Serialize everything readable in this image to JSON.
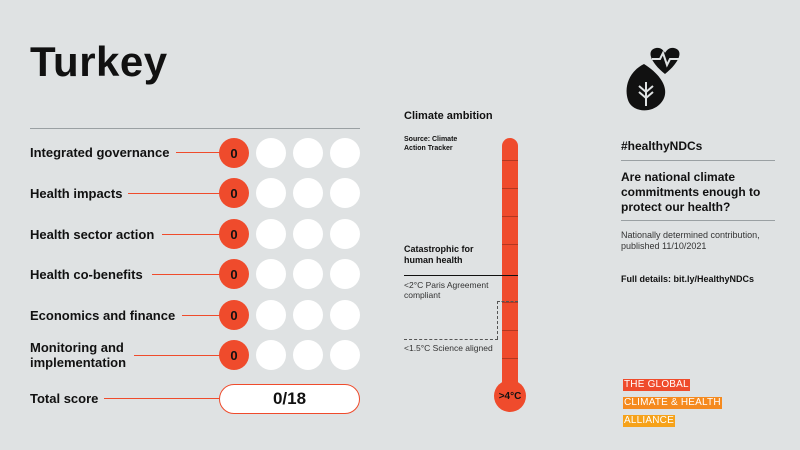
{
  "country": "Turkey",
  "rows": [
    {
      "label": "Integrated governance",
      "score": "0"
    },
    {
      "label": "Health impacts",
      "score": "0"
    },
    {
      "label": "Health sector action",
      "score": "0"
    },
    {
      "label": "Health co-benefits",
      "score": "0"
    },
    {
      "label": "Economics and finance",
      "score": "0"
    },
    {
      "label": "Monitoring and implementation",
      "score": "0"
    }
  ],
  "total": {
    "label": "Total score",
    "value": "0/18"
  },
  "climate": {
    "title": "Climate ambition",
    "source": "Source: Climate Action Tracker",
    "catastrophic": "Catastrophic for human health",
    "paris": "<2°C Paris Agreement compliant",
    "science": "<1.5°C Science aligned",
    "bulb": ">4°C"
  },
  "panel": {
    "hashtag": "#healthyNDCs",
    "question": "Are national climate commitments enough to protect our health?",
    "ndc": "Nationally determined contribution, published 11/10/2021",
    "details": "Full details: bit.ly/HealthyNDCs"
  },
  "alliance": [
    "THE GLOBAL",
    "CLIMATE & HEALTH",
    "ALLIANCE"
  ],
  "icons": {
    "logo": "heart-leaf-icon"
  },
  "colors": {
    "accent": "#ef4b2c",
    "orange": "#f6a21a",
    "background": "#dfe2e3"
  }
}
